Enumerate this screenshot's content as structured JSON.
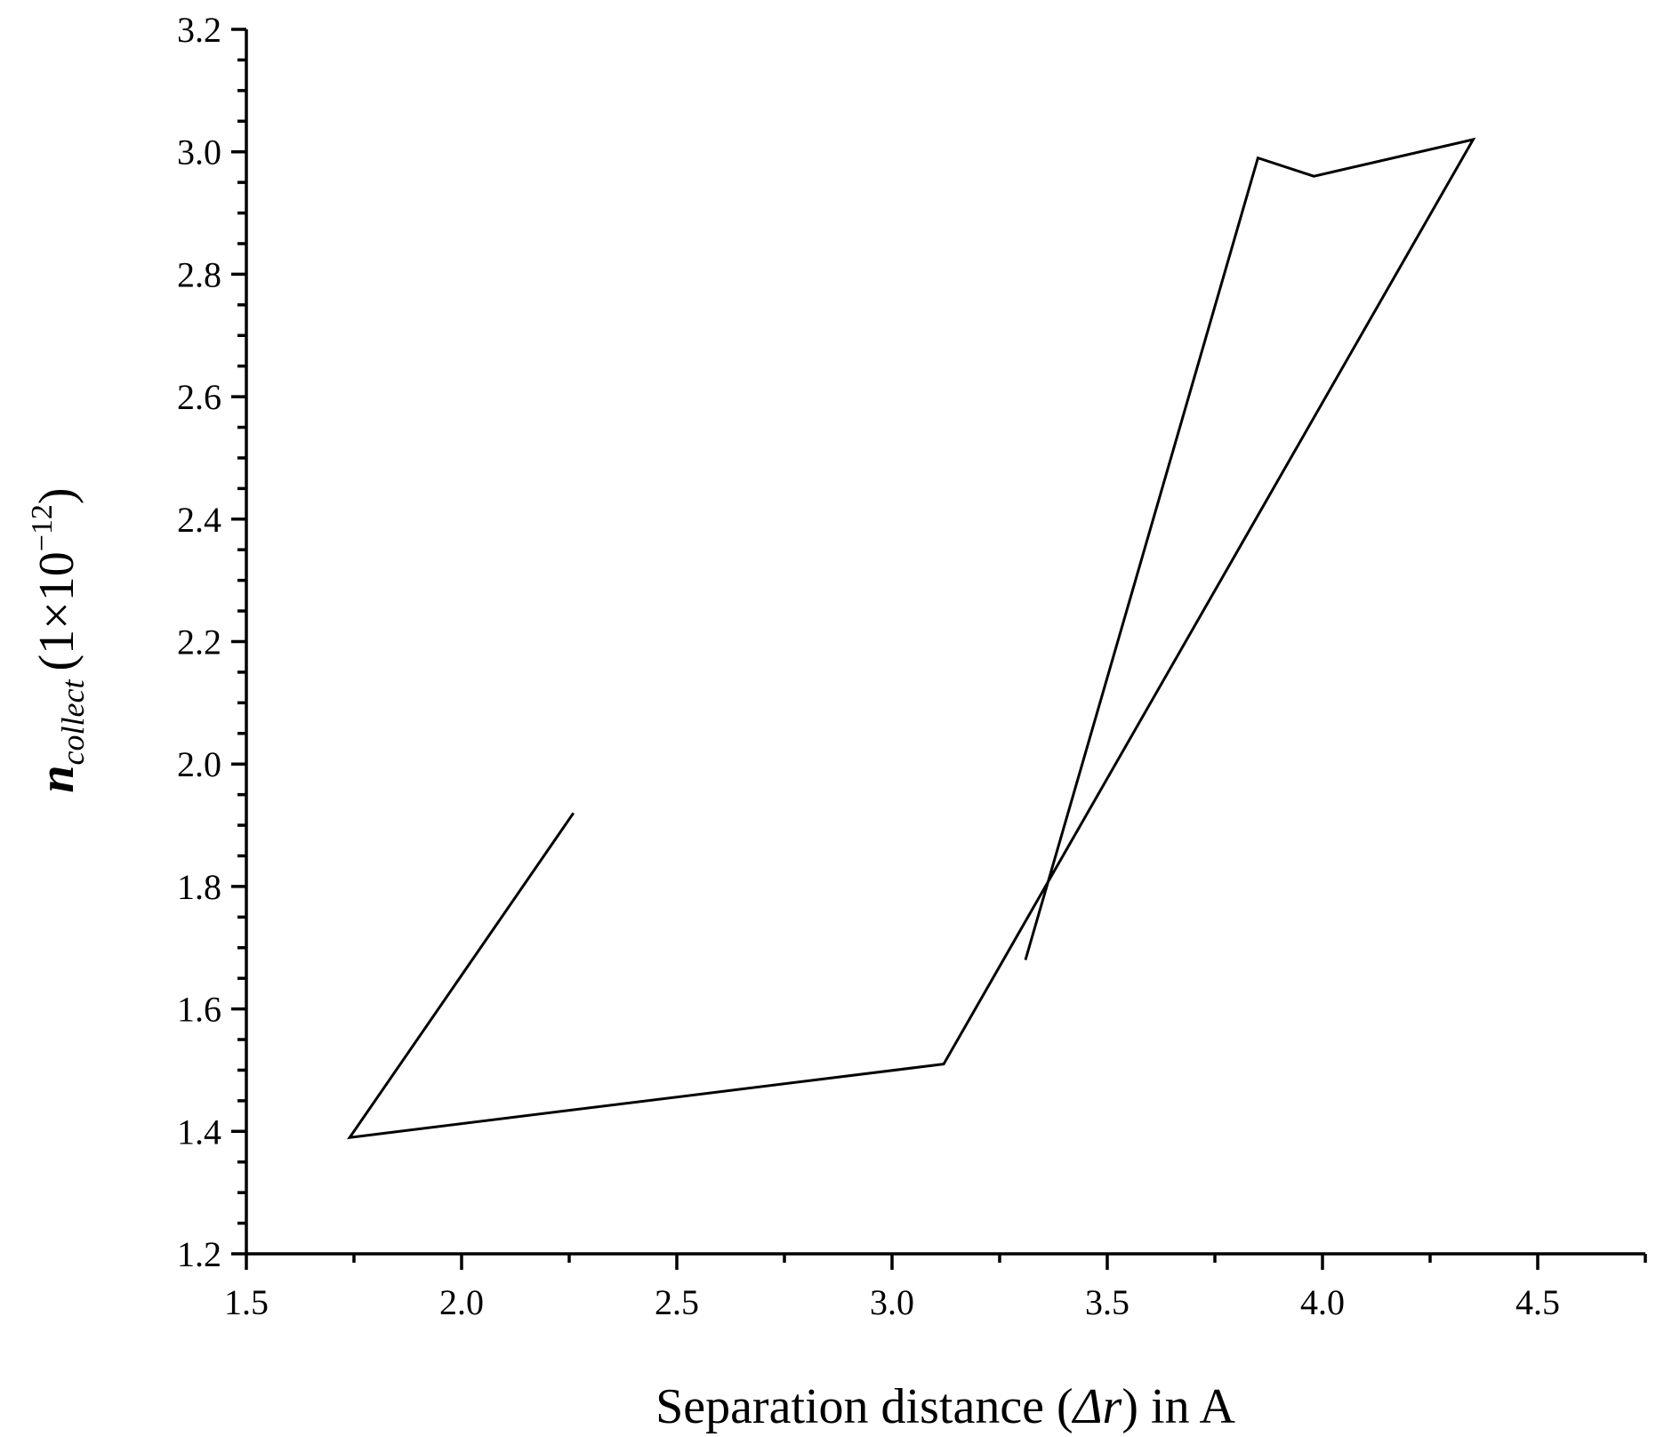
{
  "chart_data": {
    "type": "line",
    "xlabel": {
      "prefix": "Separation distance (",
      "symbol": "Δr",
      "suffix": ") in A"
    },
    "ylabel": {
      "symbol": "n",
      "subscript": "collect",
      "open": "(1×10",
      "exponent": "−12",
      "close": ")"
    },
    "xlim": [
      1.5,
      4.75
    ],
    "ylim": [
      1.2,
      3.2
    ],
    "xticks": [
      "1.5",
      "2.0",
      "2.5",
      "3.0",
      "3.5",
      "4.0",
      "4.5"
    ],
    "yticks": [
      "1.2",
      "1.4",
      "1.6",
      "1.8",
      "2.0",
      "2.2",
      "2.4",
      "2.6",
      "2.8",
      "3.0",
      "3.2"
    ],
    "minor_ticks": true,
    "grid": false,
    "legend": "none",
    "series": [
      {
        "color": "#000000",
        "points": [
          {
            "x": 2.26,
            "y": 1.92
          },
          {
            "x": 1.74,
            "y": 1.39
          },
          {
            "x": 3.12,
            "y": 1.51
          },
          {
            "x": 4.35,
            "y": 3.02
          },
          {
            "x": 3.98,
            "y": 2.96
          },
          {
            "x": 3.85,
            "y": 2.99
          },
          {
            "x": 3.31,
            "y": 1.68
          }
        ]
      }
    ]
  }
}
